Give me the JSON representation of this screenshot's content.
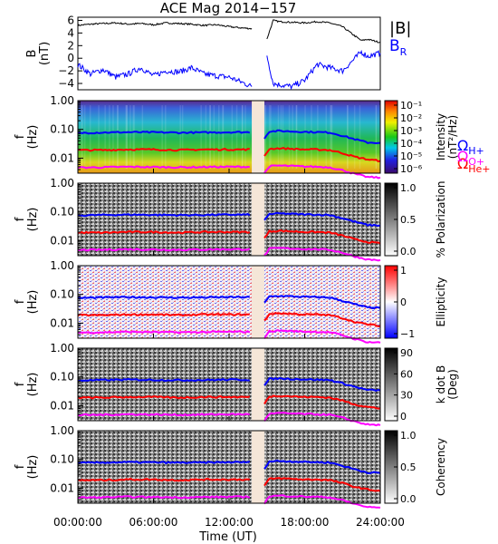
{
  "title": "ACE Mag 2014−157",
  "x_axis": {
    "label": "Time (UT)",
    "ticks": [
      "00:00:00",
      "06:00:00",
      "12:00:00",
      "18:00:00",
      "24:00:00"
    ],
    "tick_hours": [
      0,
      6,
      12,
      18,
      24
    ],
    "range_hours": [
      0,
      24
    ]
  },
  "data_gap_hours": [
    13.8,
    14.8
  ],
  "colors": {
    "B": "#000000",
    "BR": "#0000ff",
    "H": "#0000ff",
    "He": "#ff0000",
    "O": "#ff00ff",
    "gap": "#f5e6d8"
  },
  "panel1": {
    "ylabel_top": "B",
    "ylabel_bottom": "(nT)",
    "yticks": [
      "6",
      "4",
      "2",
      "0",
      "−2",
      "−4"
    ],
    "legend_B": "|B|",
    "legend_BR": "B",
    "legend_BR_sub": "R"
  },
  "freq_axis": {
    "ylabel_top": "f",
    "ylabel_bottom": "(Hz)",
    "ticks": [
      "1.00",
      "0.10",
      "0.01"
    ]
  },
  "cyclotron_legend": [
    {
      "symbol": "Ω",
      "sub": "H+"
    },
    {
      "symbol": "Ω",
      "sub": "He+"
    },
    {
      "symbol": "Ω",
      "sub": "O+"
    }
  ],
  "colorbars": [
    {
      "title_line1": "Intensity",
      "title_line2": "(nT²/Hz)",
      "ticks": [
        "10⁻¹",
        "10⁻²",
        "10⁻³",
        "10⁻⁴",
        "10⁻⁵",
        "10⁻⁶"
      ]
    },
    {
      "title_line1": "% Polarization",
      "title_line2": "",
      "ticks": [
        "1.0",
        "0.5",
        "0.0"
      ]
    },
    {
      "title_line1": "Ellipticity",
      "title_line2": "",
      "ticks": [
        "1",
        "0",
        "−1"
      ]
    },
    {
      "title_line1": "k dot B",
      "title_line2": "(Deg)",
      "ticks": [
        "90",
        "60",
        "30",
        "0"
      ]
    },
    {
      "title_line1": "Coherency",
      "title_line2": "",
      "ticks": [
        "1.0",
        "0.5",
        "0.0"
      ]
    }
  ],
  "chart_data": {
    "type": "line",
    "title": "ACE Mag 2014−157",
    "xlabel": "Time (UT)",
    "ylabel": "B (nT)",
    "xlim": [
      0,
      24
    ],
    "ylim": [
      -5,
      6.5
    ],
    "x": [
      0,
      1,
      2,
      3,
      4,
      5,
      6,
      7,
      8,
      9,
      10,
      11,
      12,
      13,
      13.8,
      14.8,
      15,
      15.5,
      16,
      17,
      18,
      19,
      20,
      21,
      22,
      22.5,
      23,
      24
    ],
    "series": [
      {
        "name": "|B|",
        "values": [
          5.2,
          5.4,
          5.5,
          5.6,
          5.4,
          5.5,
          5.3,
          5.6,
          5.5,
          5.4,
          5.2,
          5.3,
          5.0,
          4.8,
          4.7,
          null,
          3.0,
          6.0,
          5.8,
          5.7,
          5.6,
          5.8,
          5.6,
          5.0,
          3.5,
          2.8,
          3.0,
          2.5
        ]
      },
      {
        "name": "B",
        "values": [
          -1.0,
          -2.5,
          -1.8,
          -3.0,
          -2.5,
          -1.5,
          -2.8,
          -2.0,
          -2.2,
          -1.5,
          -2.5,
          -2.8,
          -3.0,
          -3.8,
          -4.5,
          null,
          0.5,
          -4.0,
          -4.2,
          -4.5,
          -3.5,
          -1.0,
          -1.5,
          -2.0,
          0.0,
          1.0,
          0.3,
          0.8
        ]
      }
    ],
    "frequency_panels": {
      "y_scale": "log",
      "ylim_hz": [
        0.003,
        1.0
      ],
      "lines_x": [
        0,
        2,
        4,
        6,
        8,
        10,
        12,
        13.8,
        14.8,
        15.2,
        16,
        17,
        18,
        19,
        20,
        21,
        22,
        23,
        24
      ],
      "f_H_plus_hz": [
        0.075,
        0.078,
        0.08,
        0.079,
        0.077,
        0.078,
        0.08,
        0.08,
        0.05,
        0.085,
        0.088,
        0.085,
        0.082,
        0.08,
        0.078,
        0.06,
        0.045,
        0.035,
        0.034
      ],
      "f_He_plus_hz": [
        0.019,
        0.019,
        0.02,
        0.02,
        0.019,
        0.02,
        0.02,
        0.02,
        0.012,
        0.021,
        0.022,
        0.021,
        0.02,
        0.02,
        0.019,
        0.015,
        0.011,
        0.009,
        0.008
      ],
      "f_O_plus_hz": [
        0.0047,
        0.0048,
        0.005,
        0.0049,
        0.0048,
        0.0049,
        0.005,
        0.005,
        0.003,
        0.0052,
        0.0055,
        0.0053,
        0.0051,
        0.005,
        0.0048,
        0.0038,
        0.0028,
        0.0022,
        0.0021
      ]
    }
  }
}
